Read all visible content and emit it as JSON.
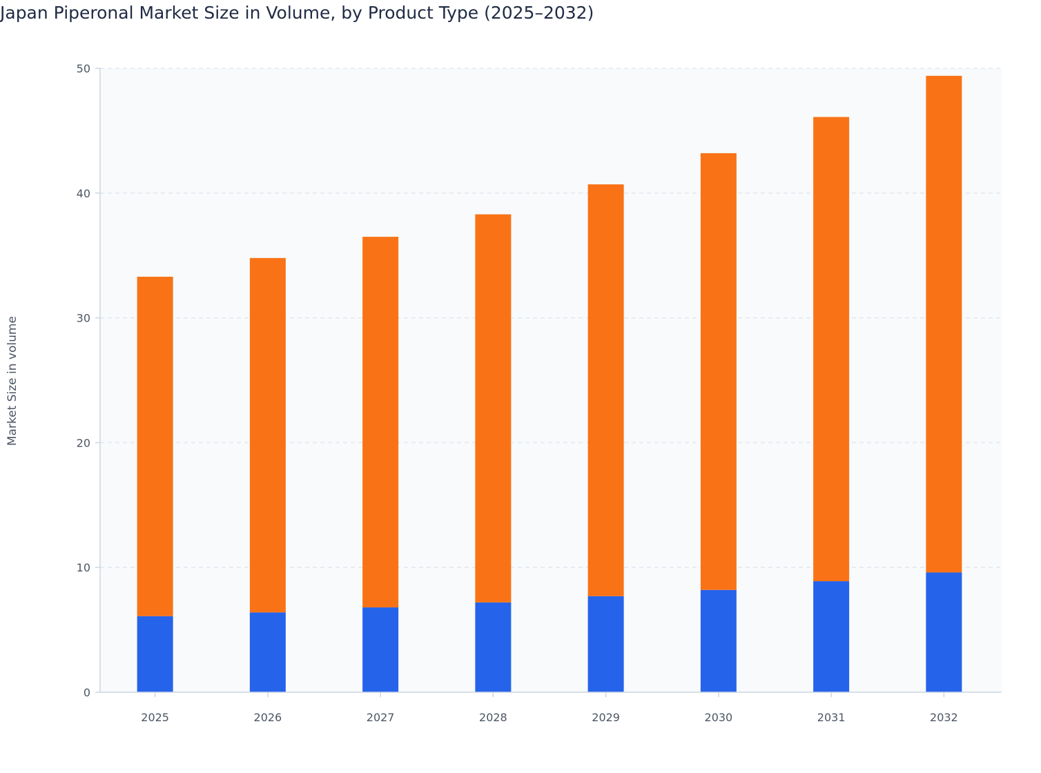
{
  "chart_data": {
    "type": "bar",
    "stacked": true,
    "title": "Japan Piperonal Market Size in Volume, by Product Type (2025–2032)",
    "xlabel": "",
    "ylabel": "Market Size in volume",
    "ylim": [
      0,
      50
    ],
    "yticks": [
      "0",
      "10",
      "20",
      "30",
      "40",
      "50"
    ],
    "grid": true,
    "categories": [
      "2025",
      "2026",
      "2027",
      "2028",
      "2029",
      "2030",
      "2031",
      "2032"
    ],
    "series": [
      {
        "color": "#2563eb",
        "values": [
          6.1,
          6.4,
          6.8,
          7.2,
          7.7,
          8.2,
          8.9,
          9.6
        ]
      },
      {
        "color": "#f97316",
        "values": [
          27.2,
          28.4,
          29.7,
          31.1,
          33.0,
          35.0,
          37.2,
          39.8
        ]
      }
    ]
  }
}
